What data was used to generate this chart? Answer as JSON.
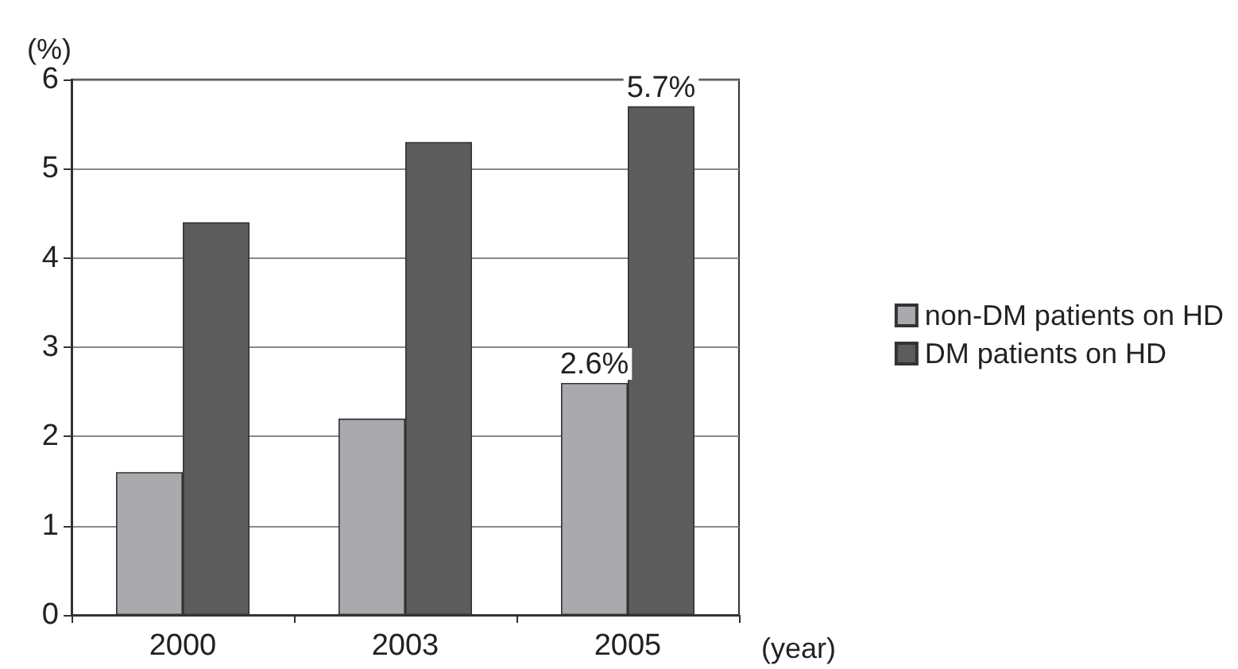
{
  "chart_data": {
    "type": "bar",
    "xlabel": "(year)",
    "ylabel": "(%)",
    "categories": [
      "2000",
      "2003",
      "2005"
    ],
    "series": [
      {
        "name": "non-DM patients on HD",
        "color": "#a9a9ae",
        "values": [
          1.6,
          2.2,
          2.6
        ],
        "value_labels": [
          null,
          null,
          "2.6%"
        ]
      },
      {
        "name": "DM patients on HD",
        "color": "#5c5c5c",
        "values": [
          4.4,
          5.3,
          5.7
        ],
        "value_labels": [
          null,
          null,
          "5.7%"
        ]
      }
    ],
    "ylim": [
      0,
      6
    ],
    "yticks": [
      0,
      1,
      2,
      3,
      4,
      5,
      6
    ],
    "grid": "y",
    "legend": "right"
  }
}
